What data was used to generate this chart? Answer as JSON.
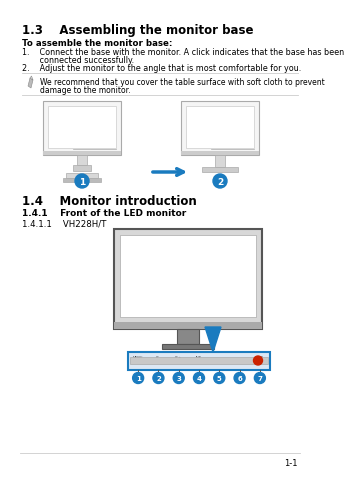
{
  "bg_color": "#ffffff",
  "title_13": "1.3    Assembling the monitor base",
  "bold_label": "To assemble the monitor base:",
  "step1a": "1.    Connect the base with the monitor. A click indicates that the base has been",
  "step1b": "       connected successfully.",
  "step2": "2.    Adjust the monitor to the angle that is most comfortable for you.",
  "note1": "We recommend that you cover the table surface with soft cloth to prevent",
  "note2": "damage to the monitor.",
  "title_14": "1.4    Monitor introduction",
  "title_141": "1.4.1    Front of the LED monitor",
  "title_1411": "1.4.1.1    VH228H/T",
  "footer": "1-1",
  "blue_color": "#1a7bbf",
  "gray_dark": "#666666",
  "gray_med": "#999999",
  "gray_light": "#cccccc",
  "gray_frame": "#b0b0b0",
  "red_circle": "#cc2200",
  "panel_blue_border": "#1a7bbf",
  "panel_bg": "#dce8f5"
}
